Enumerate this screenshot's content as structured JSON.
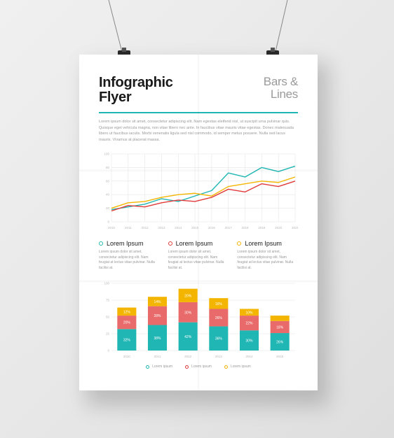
{
  "background_color": "#ececec",
  "poster_bg": "#ffffff",
  "header": {
    "title_line1": "Infographic",
    "title_line2": "Flyer",
    "subtitle_line1": "Bars &",
    "subtitle_line2": "Lines",
    "subtitle_color": "#9a9a9a",
    "divider_color": "#1fb6b3"
  },
  "intro_text": "Lorem ipsum dolor sit amet, consectetur adipiscing elit. Nam egestas eleifend nisl, ut suscipit urna pulvinar quis. Quisque eget vehicula magna, non vitae libero nec ante. In faucibus vitae mauris vitae egestas. Donec malesuada libero ut faucibus iaculis. Morbi venenatis ligula sed nisl commodo, id semper metus posuere. Nulla sed lacus mauris. Vivamus at placerat massa.",
  "line_chart": {
    "type": "line",
    "grid_color": "#e6e6e6",
    "background": "#ffffff",
    "xlim": [
      0,
      11
    ],
    "ylim": [
      0,
      100
    ],
    "y_gridlines": [
      0,
      20,
      40,
      60,
      80,
      100
    ],
    "x_ticks": 12,
    "line_width": 1.4,
    "series": [
      {
        "name": "cyan",
        "color": "#1fb6b3",
        "values": [
          18,
          22,
          26,
          34,
          30,
          38,
          46,
          72,
          66,
          80,
          74,
          82
        ]
      },
      {
        "name": "yellow",
        "color": "#f3b500",
        "values": [
          20,
          28,
          30,
          36,
          40,
          42,
          38,
          52,
          56,
          60,
          58,
          66
        ]
      },
      {
        "name": "red",
        "color": "#e03a3a",
        "values": [
          16,
          24,
          22,
          28,
          32,
          30,
          36,
          48,
          44,
          56,
          52,
          60
        ]
      }
    ]
  },
  "columns": [
    {
      "bullet_color": "#1fb6b3",
      "title": "Lorem Ipsum",
      "text": "Lorem ipsum dolor sit amet, consectetur adipiscing elit. Nam feugiat at lectus vitae pulvinar. Nulla facilisi at."
    },
    {
      "bullet_color": "#e03a3a",
      "title": "Lorem Ipsum",
      "text": "Lorem ipsum dolor sit amet, consectetur adipiscing elit. Nam feugiat at lectus vitae pulvinar. Nulla facilisi at."
    },
    {
      "bullet_color": "#f3b500",
      "title": "Lorem Ipsum",
      "text": "Lorem ipsum dolor sit amet, consectetur adipiscing elit. Nam feugiat at lectus vitae pulvinar. Nulla facilisi at."
    }
  ],
  "bar_chart": {
    "type": "stacked-bar",
    "grid_color": "#e6e6e6",
    "categories": [
      "Bar1",
      "Bar2",
      "Bar3",
      "Bar4",
      "Bar5",
      "Bar6"
    ],
    "ylim": [
      0,
      100
    ],
    "y_gridlines": [
      0,
      25,
      50,
      75,
      100
    ],
    "bar_width": 0.62,
    "stack_order": [
      "cyan",
      "red",
      "yellow"
    ],
    "colors": {
      "cyan": "#1fb6b3",
      "red": "#e96a6a",
      "yellow": "#f3b500"
    },
    "value_label_color": "#ffffff",
    "data": [
      {
        "cyan": 32,
        "red": 20,
        "yellow": 12
      },
      {
        "cyan": 38,
        "red": 28,
        "yellow": 14
      },
      {
        "cyan": 42,
        "red": 30,
        "yellow": 20
      },
      {
        "cyan": 36,
        "red": 26,
        "yellow": 16
      },
      {
        "cyan": 30,
        "red": 22,
        "yellow": 10
      },
      {
        "cyan": 26,
        "red": 18,
        "yellow": 8
      }
    ]
  },
  "legend": [
    {
      "color": "#1fb6b3",
      "label": "Lorem ipsum"
    },
    {
      "color": "#e03a3a",
      "label": "Lorem ipsum"
    },
    {
      "color": "#f3b500",
      "label": "Lorem ipsum"
    }
  ]
}
